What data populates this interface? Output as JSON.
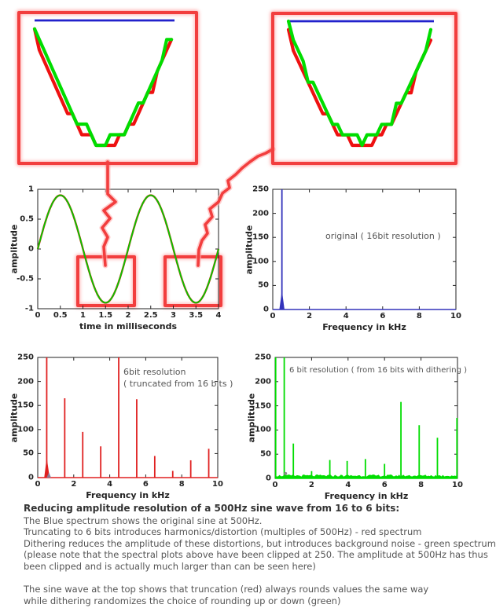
{
  "colors": {
    "frame_red": "#f23e3e",
    "sine_green": "#00cc00",
    "sine_red_under": "#cc2200",
    "original_blue": "#3333bb",
    "truncated_red": "#e02020",
    "dithered_green": "#00dd00",
    "axis": "#222222",
    "annotation_gray": "#555555"
  },
  "chart_data": [
    {
      "id": "sine_wave",
      "type": "line",
      "xlabel": "time in milliseconds",
      "ylabel": "amplitude",
      "xlim": [
        0,
        4
      ],
      "ylim": [
        -1,
        1
      ],
      "xticks": [
        "0",
        "0.5",
        "1",
        "1.5",
        "2",
        "2.5",
        "3",
        "3.5",
        "4"
      ],
      "xtick_values": [
        0,
        0.5,
        1,
        1.5,
        2,
        2.5,
        3,
        3.5,
        4
      ],
      "yticks": [
        "1",
        "0.5",
        "0",
        "-0.5",
        "-1"
      ],
      "ytick_values": [
        1,
        0.5,
        0,
        -0.5,
        -1
      ],
      "series": [
        {
          "name": "500Hz sine (green dithered over red truncated over blue original)",
          "amplitude": 0.9,
          "period_ms": 2,
          "phase": 0
        }
      ],
      "highlight_boxes": [
        {
          "t": [
            0.85,
            2.17
          ],
          "amp": [
            -0.105,
            -0.97
          ]
        },
        {
          "t": [
            2.78,
            4.08
          ],
          "amp": [
            -0.105,
            -0.97
          ]
        }
      ],
      "grid": false
    },
    {
      "id": "original_spectrum",
      "type": "bar",
      "annotation": "original ( 16bit resolution )",
      "xlabel": "Frequency in kHz",
      "ylabel": "amplitude",
      "xlim": [
        0,
        10
      ],
      "ylim": [
        0,
        250
      ],
      "xticks": [
        "0",
        "2",
        "4",
        "6",
        "8",
        "10"
      ],
      "xtick_values": [
        0,
        2,
        4,
        6,
        8,
        10
      ],
      "yticks": [
        "0",
        "50",
        "100",
        "150",
        "200",
        "250"
      ],
      "ytick_values": [
        0,
        50,
        100,
        150,
        200,
        250
      ],
      "peaks_kHz_amplitude": [
        [
          0.5,
          250
        ]
      ],
      "clipped_at": 250,
      "grid": false
    },
    {
      "id": "truncated_spectrum",
      "type": "bar",
      "annotation_lines": [
        "6bit resolution",
        "( truncated from 16 bits )"
      ],
      "xlabel": "Frequency in kHz",
      "ylabel": "amplitude",
      "xlim": [
        0,
        10
      ],
      "ylim": [
        0,
        250
      ],
      "xticks": [
        "0",
        "2",
        "4",
        "6",
        "8",
        "10"
      ],
      "xtick_values": [
        0,
        2,
        4,
        6,
        8,
        10
      ],
      "yticks": [
        "0",
        "50",
        "100",
        "150",
        "200",
        "250"
      ],
      "ytick_values": [
        0,
        50,
        100,
        150,
        200,
        250
      ],
      "peaks_kHz_amplitude": [
        [
          0.5,
          250
        ],
        [
          1.5,
          165
        ],
        [
          2.5,
          95
        ],
        [
          3.5,
          65
        ],
        [
          4.5,
          250
        ],
        [
          5.5,
          163
        ],
        [
          6.5,
          45
        ],
        [
          7.5,
          14
        ],
        [
          8.5,
          36
        ],
        [
          9.5,
          60
        ]
      ],
      "clipped_at": 250,
      "grid": false
    },
    {
      "id": "dithered_spectrum",
      "type": "bar",
      "annotation": "6 bit resolution ( from 16 bits with dithering )",
      "xlabel": "Frequency in kHz",
      "ylabel": "amplitude",
      "xlim": [
        0,
        10
      ],
      "ylim": [
        0,
        250
      ],
      "xticks": [
        "0",
        "2",
        "4",
        "6",
        "8",
        "10"
      ],
      "xtick_values": [
        0,
        2,
        4,
        6,
        8,
        10
      ],
      "yticks": [
        "0",
        "50",
        "100",
        "150",
        "200",
        "250"
      ],
      "ytick_values": [
        0,
        50,
        100,
        150,
        200,
        250
      ],
      "peaks_kHz_amplitude": [
        [
          0.03,
          250
        ],
        [
          0.5,
          250
        ],
        [
          1.0,
          72
        ],
        [
          2.0,
          15
        ],
        [
          3.0,
          38
        ],
        [
          3.95,
          36
        ],
        [
          4.95,
          40
        ],
        [
          6.0,
          30
        ],
        [
          6.9,
          158
        ],
        [
          7.9,
          110
        ],
        [
          8.9,
          84
        ],
        [
          9.97,
          125
        ]
      ],
      "noise_floor": 8,
      "clipped_at": 250,
      "grid": false
    }
  ],
  "insets": {
    "description": "zoomed views of the sine-wave troughs: blue = original, red = truncated (steps), green = dithered (steps)",
    "quant_step": 0.0625
  },
  "caption": {
    "title": "Reducing amplitude resolution of a 500Hz sine wave from 16 to 6 bits:",
    "lines": [
      "The Blue spectrum shows the original sine at 500Hz.",
      "Truncating to 6 bits introduces harmonics/distortion (multiples of 500Hz) - red spectrum",
      "Dithering reduces the amplitude of these distortions, but introduces background noise - green spectrum",
      "(please note that the spectral plots above have been clipped at 250. The amplitude at 500Hz has thus",
      "been clipped and is actually much larger than can be seen here)",
      "",
      "The sine wave at the top shows that truncation (red) always rounds values the same way",
      "while dithering randomizes the choice of rounding up or down (green)"
    ]
  }
}
